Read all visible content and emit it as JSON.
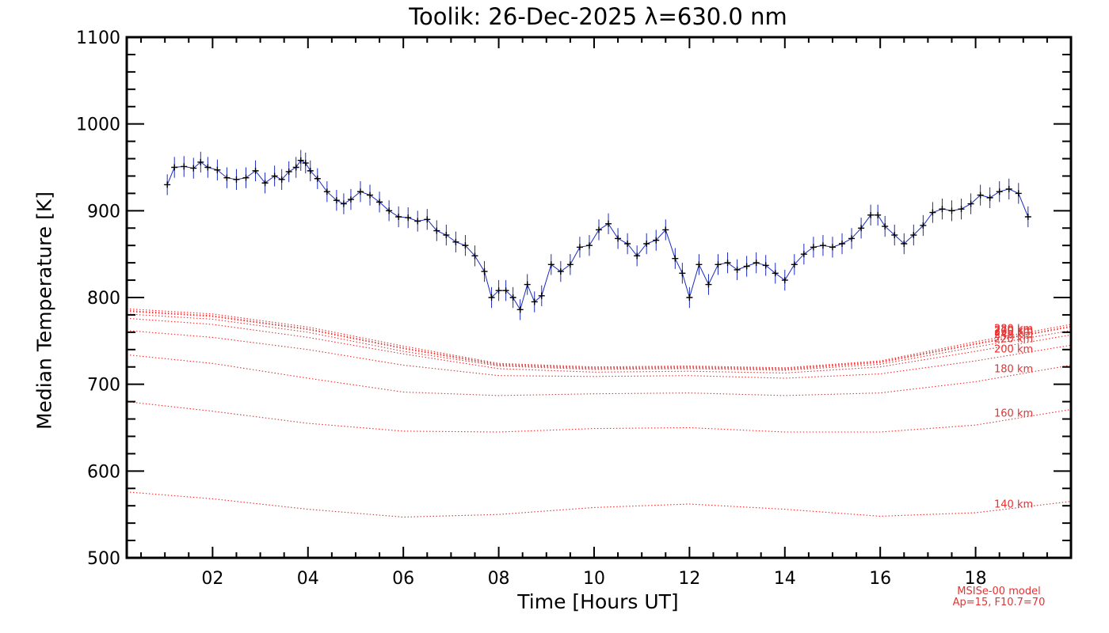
{
  "chart_data": {
    "type": "line",
    "title": "Toolik: 26-Dec-2025 λ=630.0 nm",
    "xlabel": "Time [Hours UT]",
    "ylabel": "Median Temperature [K]",
    "xlim": [
      0.2,
      20.0
    ],
    "ylim": [
      500,
      1100
    ],
    "x_ticks": [
      2,
      4,
      6,
      8,
      10,
      12,
      14,
      16,
      18
    ],
    "x_tick_labels": [
      "02",
      "04",
      "06",
      "08",
      "10",
      "12",
      "14",
      "16",
      "18"
    ],
    "y_ticks": [
      500,
      600,
      700,
      800,
      900,
      1000,
      1100
    ],
    "y_tick_labels": [
      "500",
      "600",
      "700",
      "800",
      "900",
      "1000",
      "1100"
    ],
    "colors": {
      "data_line": "#1a2bbf",
      "data_marker": "#000000",
      "model": "#e83030",
      "axis": "#000000"
    },
    "measured": {
      "name": "Median temperature",
      "error_bar_k": 12,
      "x": [
        1.05,
        1.2,
        1.4,
        1.6,
        1.75,
        1.9,
        2.1,
        2.3,
        2.5,
        2.7,
        2.9,
        3.1,
        3.3,
        3.45,
        3.6,
        3.75,
        3.85,
        3.95,
        4.05,
        4.2,
        4.4,
        4.6,
        4.75,
        4.9,
        5.1,
        5.3,
        5.5,
        5.7,
        5.9,
        6.1,
        6.3,
        6.5,
        6.7,
        6.9,
        7.1,
        7.3,
        7.5,
        7.7,
        7.85,
        8.0,
        8.15,
        8.3,
        8.45,
        8.6,
        8.75,
        8.9,
        9.1,
        9.3,
        9.5,
        9.7,
        9.9,
        10.1,
        10.3,
        10.5,
        10.7,
        10.9,
        11.1,
        11.3,
        11.5,
        11.7,
        11.85,
        12.0,
        12.2,
        12.4,
        12.6,
        12.8,
        13.0,
        13.2,
        13.4,
        13.6,
        13.8,
        14.0,
        14.2,
        14.4,
        14.6,
        14.8,
        15.0,
        15.2,
        15.4,
        15.6,
        15.8,
        15.95,
        16.1,
        16.3,
        16.5,
        16.7,
        16.9,
        17.1,
        17.3,
        17.5,
        17.7,
        17.9,
        18.1,
        18.3,
        18.5,
        18.7,
        18.9,
        19.1
      ],
      "y": [
        930,
        950,
        951,
        949,
        956,
        950,
        947,
        938,
        936,
        938,
        946,
        932,
        940,
        936,
        945,
        950,
        958,
        955,
        946,
        937,
        922,
        912,
        908,
        913,
        922,
        918,
        910,
        900,
        893,
        892,
        888,
        890,
        877,
        872,
        864,
        860,
        848,
        830,
        800,
        808,
        808,
        800,
        786,
        815,
        795,
        802,
        838,
        830,
        838,
        858,
        860,
        878,
        885,
        868,
        862,
        848,
        862,
        866,
        878,
        845,
        828,
        800,
        838,
        815,
        838,
        840,
        832,
        836,
        840,
        837,
        828,
        820,
        838,
        850,
        858,
        860,
        858,
        862,
        868,
        880,
        895,
        895,
        882,
        872,
        862,
        872,
        883,
        898,
        902,
        900,
        902,
        908,
        918,
        915,
        922,
        925,
        920,
        893
      ]
    },
    "model_curves": [
      {
        "name": "140 km",
        "label": "140 km",
        "x": [
          0.2,
          2,
          4,
          6,
          8,
          10,
          12,
          14,
          16,
          18,
          20
        ],
        "y": [
          576,
          568,
          556,
          547,
          550,
          558,
          562,
          556,
          548,
          552,
          565
        ]
      },
      {
        "name": "160 km",
        "label": "160 km",
        "x": [
          0.2,
          2,
          4,
          6,
          8,
          10,
          12,
          14,
          16,
          18,
          20
        ],
        "y": [
          680,
          669,
          655,
          646,
          645,
          649,
          650,
          645,
          645,
          653,
          671
        ]
      },
      {
        "name": "180 km",
        "label": "180 km",
        "x": [
          0.2,
          2,
          4,
          6,
          8,
          10,
          12,
          14,
          16,
          18,
          20
        ],
        "y": [
          734,
          724,
          707,
          691,
          687,
          689,
          690,
          687,
          690,
          703,
          722
        ]
      },
      {
        "name": "200 km",
        "label": "200 km",
        "x": [
          0.2,
          2,
          4,
          6,
          8,
          10,
          12,
          14,
          16,
          18,
          20
        ],
        "y": [
          762,
          754,
          740,
          722,
          710,
          709,
          710,
          707,
          712,
          727,
          745
        ]
      },
      {
        "name": "220 km",
        "label": "220 km",
        "x": [
          0.2,
          2,
          4,
          6,
          8,
          10,
          12,
          14,
          16,
          18,
          20
        ],
        "y": [
          776,
          769,
          754,
          735,
          718,
          714,
          715,
          713,
          720,
          738,
          757
        ]
      },
      {
        "name": "240 km",
        "label": "240 km",
        "x": [
          0.2,
          2,
          4,
          6,
          8,
          10,
          12,
          14,
          16,
          18,
          20
        ],
        "y": [
          781,
          775,
          760,
          738,
          721,
          717,
          718,
          716,
          723,
          743,
          762
        ]
      },
      {
        "name": "260 km",
        "label": "260 km",
        "x": [
          0.2,
          2,
          4,
          6,
          8,
          10,
          12,
          14,
          16,
          18,
          20
        ],
        "y": [
          784,
          778,
          763,
          741,
          722,
          718,
          719,
          717,
          725,
          746,
          766
        ]
      },
      {
        "name": "270 km",
        "label": "270 km",
        "x": [
          0.2,
          2,
          4,
          6,
          8,
          10,
          12,
          14,
          16,
          18,
          20
        ],
        "y": [
          785,
          779,
          764,
          742,
          723,
          719,
          720,
          718,
          726,
          747,
          767
        ]
      },
      {
        "name": "280 km",
        "label": "280 km",
        "x": [
          0.2,
          2,
          4,
          6,
          8,
          10,
          12,
          14,
          16,
          18,
          20
        ],
        "y": [
          787,
          781,
          766,
          744,
          724,
          720,
          721,
          719,
          727,
          749,
          769
        ]
      }
    ],
    "model_note": [
      "MSISe-00 model",
      "Ap=15, F10.7=70"
    ]
  }
}
